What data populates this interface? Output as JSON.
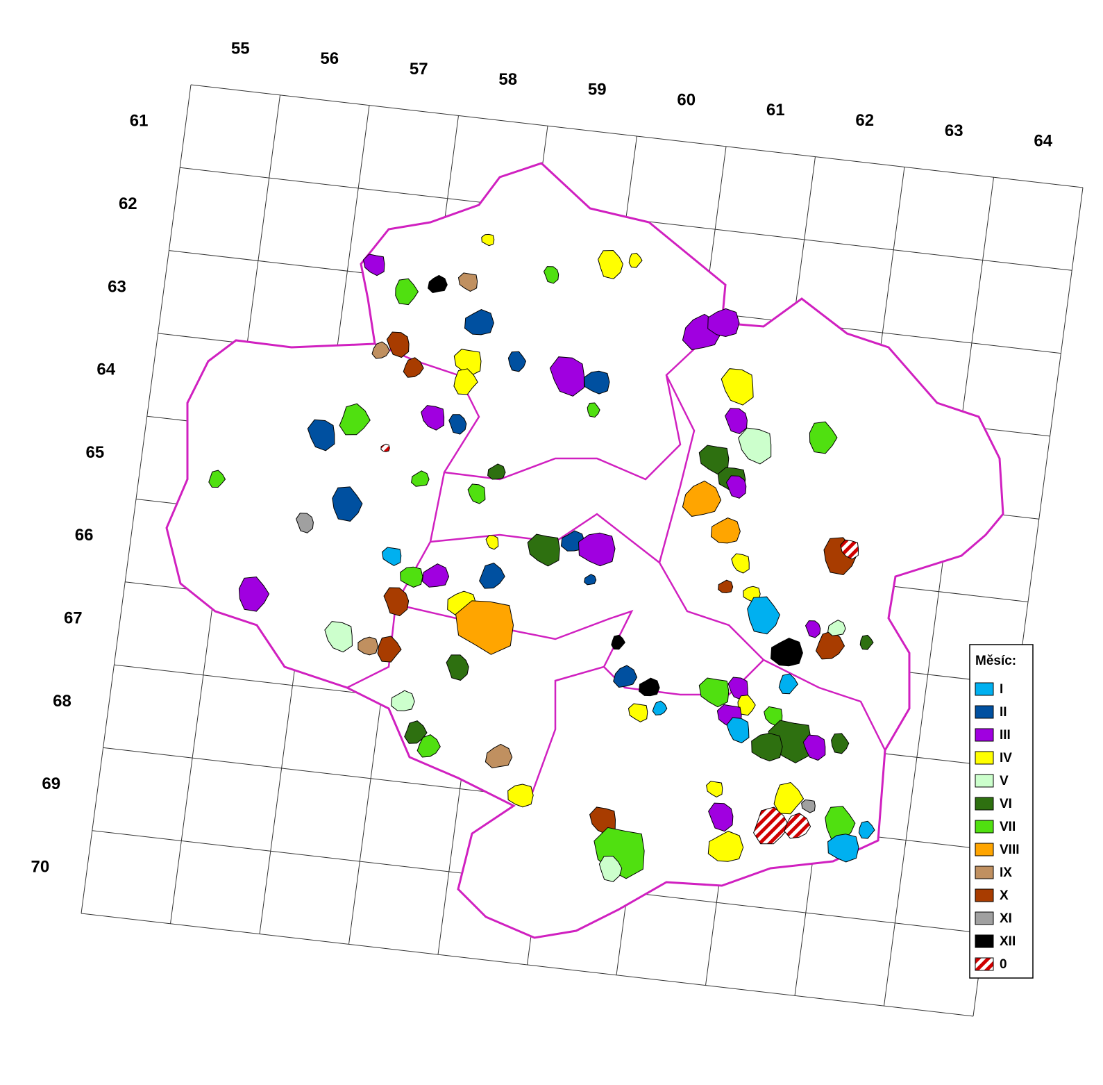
{
  "grid": {
    "column_labels": [
      "55",
      "56",
      "57",
      "58",
      "59",
      "60",
      "61",
      "62",
      "63",
      "64"
    ],
    "row_labels": [
      "61",
      "62",
      "63",
      "64",
      "65",
      "66",
      "67",
      "68",
      "69",
      "70"
    ]
  },
  "legend": {
    "title": "Měsíc:",
    "items": [
      {
        "label": "I",
        "color": "#00b0f0"
      },
      {
        "label": "II",
        "color": "#0050a0"
      },
      {
        "label": "III",
        "color": "#a000e0"
      },
      {
        "label": "IV",
        "color": "#ffff00"
      },
      {
        "label": "V",
        "color": "#ccffcc"
      },
      {
        "label": "VI",
        "color": "#2e7010"
      },
      {
        "label": "VII",
        "color": "#50e010"
      },
      {
        "label": "VIII",
        "color": "#ffa500"
      },
      {
        "label": "IX",
        "color": "#c09060"
      },
      {
        "label": "X",
        "color": "#a83c00"
      },
      {
        "label": "XI",
        "color": "#a0a0a0"
      },
      {
        "label": "XII",
        "color": "#000000"
      },
      {
        "label": "0",
        "color": "#d00000",
        "hatch": true
      }
    ]
  }
}
